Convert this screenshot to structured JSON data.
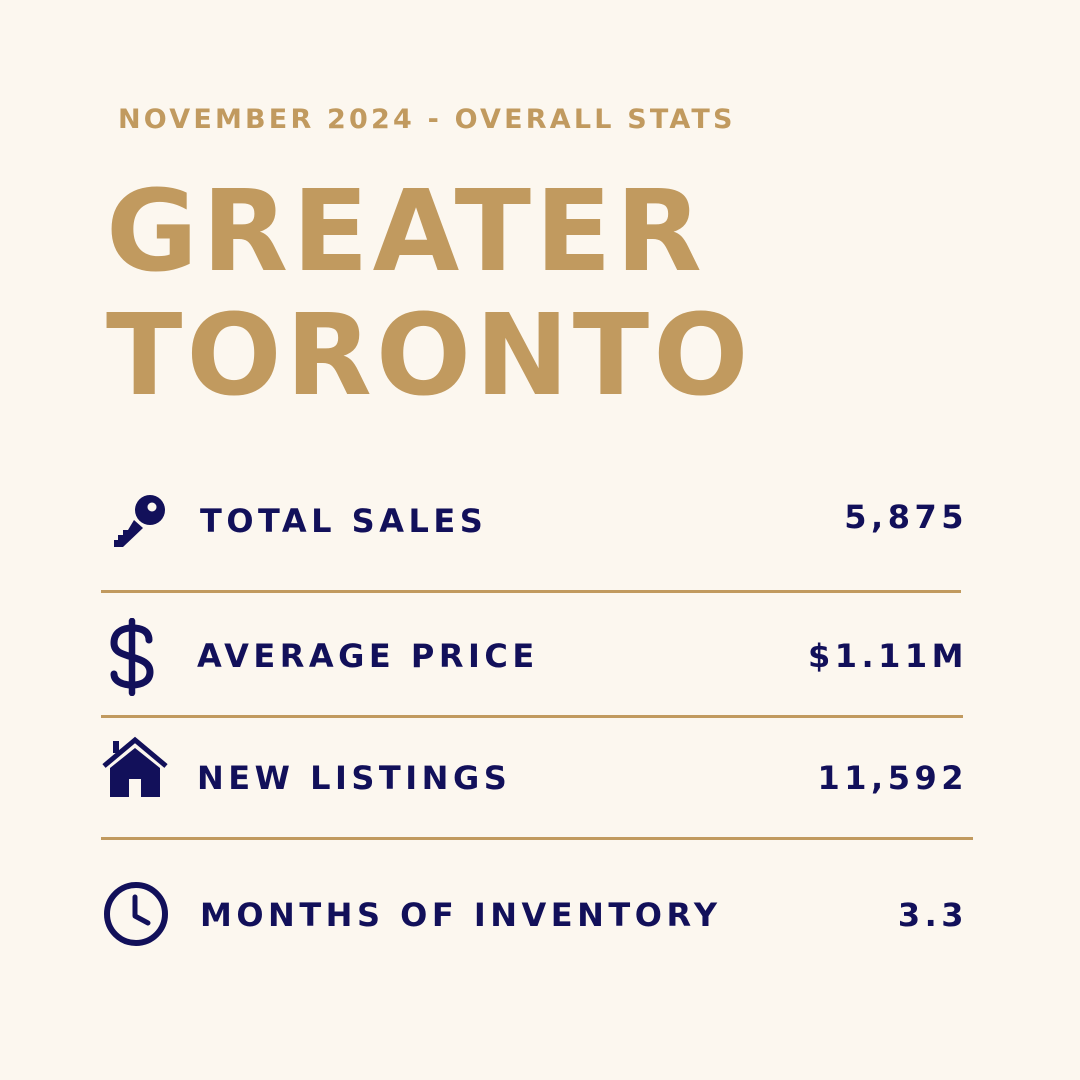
{
  "header": {
    "subtitle": "NOVEMBER 2024 - OVERALL STATS",
    "title_line_1": "GREATER",
    "title_line_2": "TORONTO"
  },
  "colors": {
    "background": "#fcf7ef",
    "gold": "#c19a5f",
    "navy": "#12105a"
  },
  "stats": [
    {
      "icon": "key-icon",
      "label": "TOTAL SALES",
      "value": "5,875"
    },
    {
      "icon": "dollar-icon",
      "label": "AVERAGE PRICE",
      "value": "$1.11M"
    },
    {
      "icon": "house-icon",
      "label": "NEW LISTINGS",
      "value": "11,592"
    },
    {
      "icon": "clock-icon",
      "label": "MONTHS OF INVENTORY",
      "value": "3.3"
    }
  ]
}
